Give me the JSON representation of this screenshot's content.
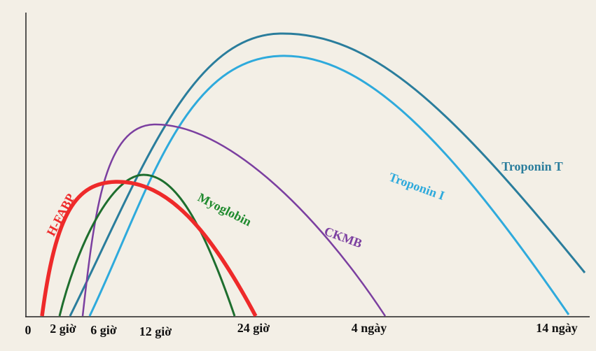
{
  "curves": [
    {
      "label": "H-FABP"
    },
    {
      "label": "Myoglobin"
    },
    {
      "label": "CKMB"
    },
    {
      "label": "Troponin I"
    },
    {
      "label": "Troponin T"
    }
  ],
  "x_axis": {
    "labels": [
      "0",
      "2 giờ",
      "6 giờ",
      "12 giờ",
      "24 giờ",
      "4 ngày",
      "14 ngày"
    ]
  }
}
